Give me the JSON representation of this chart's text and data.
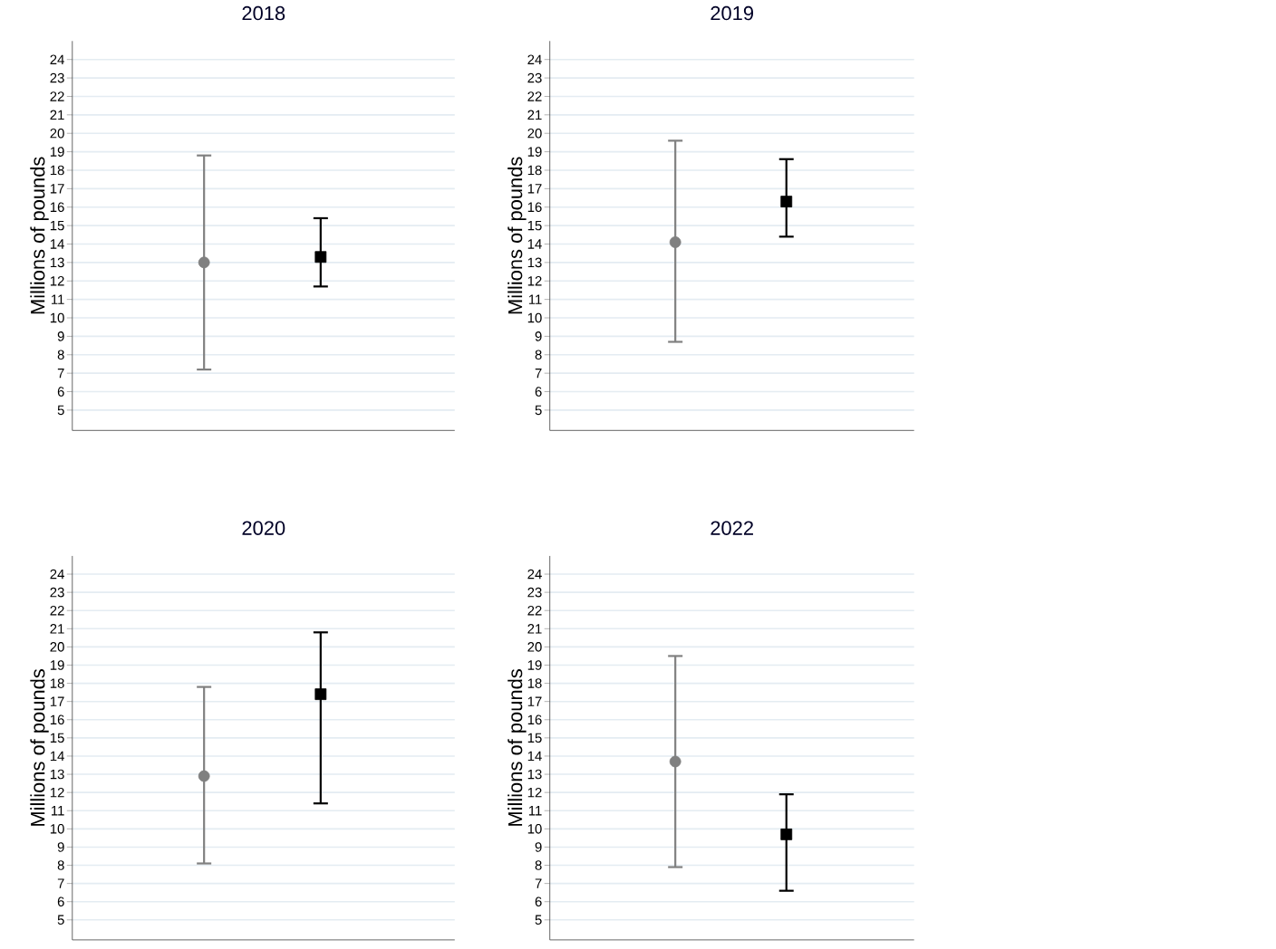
{
  "chart_data": [
    {
      "type": "scatter",
      "title": "2018",
      "ylabel": "Millions of pounds",
      "categories": [
        null,
        null
      ],
      "ylim": [
        3.9,
        25
      ],
      "yticks": [
        5,
        6,
        7,
        8,
        9,
        10,
        11,
        12,
        13,
        14,
        15,
        16,
        17,
        18,
        19,
        20,
        21,
        22,
        23,
        24
      ],
      "grid": "y",
      "tick_labels": "y",
      "series": [
        {
          "color": "#808080",
          "marker": "circle",
          "values": [
            13.0,
            null
          ],
          "errors": [
            [
              7.2,
              18.8
            ],
            null
          ]
        },
        {
          "color": "#000000",
          "marker": "square",
          "values": [
            null,
            13.3
          ],
          "errors": [
            null,
            [
              11.7,
              15.4
            ]
          ]
        }
      ]
    },
    {
      "type": "scatter",
      "title": "2019",
      "ylabel": "Millions of pounds",
      "categories": [
        null,
        null
      ],
      "ylim": [
        3.9,
        25
      ],
      "yticks": [
        5,
        6,
        7,
        8,
        9,
        10,
        11,
        12,
        13,
        14,
        15,
        16,
        17,
        18,
        19,
        20,
        21,
        22,
        23,
        24
      ],
      "grid": "y",
      "tick_labels": "y",
      "series": [
        {
          "color": "#808080",
          "marker": "circle",
          "values": [
            14.1,
            null
          ],
          "errors": [
            [
              8.7,
              19.6
            ],
            null
          ]
        },
        {
          "color": "#000000",
          "marker": "square",
          "values": [
            null,
            16.3
          ],
          "errors": [
            null,
            [
              14.4,
              18.6
            ]
          ]
        }
      ]
    },
    {
      "type": "scatter",
      "title": "2020",
      "ylabel": "Millions of pounds",
      "categories": [
        null,
        null
      ],
      "ylim": [
        3.9,
        25
      ],
      "yticks": [
        5,
        6,
        7,
        8,
        9,
        10,
        11,
        12,
        13,
        14,
        15,
        16,
        17,
        18,
        19,
        20,
        21,
        22,
        23,
        24
      ],
      "grid": "y",
      "tick_labels": "y",
      "series": [
        {
          "color": "#808080",
          "marker": "circle",
          "values": [
            12.9,
            null
          ],
          "errors": [
            [
              8.1,
              17.8
            ],
            null
          ]
        },
        {
          "color": "#000000",
          "marker": "square",
          "values": [
            null,
            17.4
          ],
          "errors": [
            null,
            [
              11.4,
              20.8
            ]
          ]
        }
      ]
    },
    {
      "type": "scatter",
      "title": "2022",
      "ylabel": "Millions of pounds",
      "categories": [
        null,
        null
      ],
      "ylim": [
        3.9,
        25
      ],
      "yticks": [
        5,
        6,
        7,
        8,
        9,
        10,
        11,
        12,
        13,
        14,
        15,
        16,
        17,
        18,
        19,
        20,
        21,
        22,
        23,
        24
      ],
      "grid": "y",
      "tick_labels": "y",
      "series": [
        {
          "color": "#808080",
          "marker": "circle",
          "values": [
            13.7,
            null
          ],
          "errors": [
            [
              7.9,
              19.5
            ],
            null
          ]
        },
        {
          "color": "#000000",
          "marker": "square",
          "values": [
            null,
            9.7
          ],
          "errors": [
            null,
            [
              6.6,
              11.9
            ]
          ]
        }
      ]
    }
  ]
}
